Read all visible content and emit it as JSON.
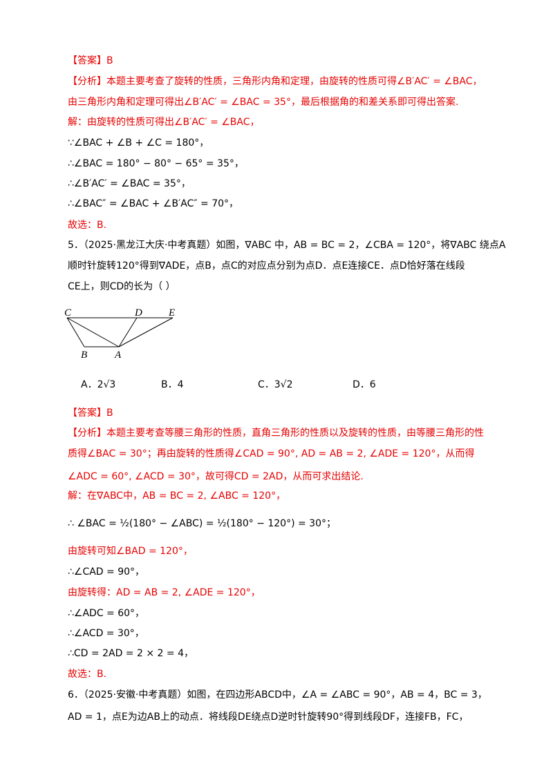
{
  "lines": [
    {
      "text": "【答案】B",
      "color": "#e60000"
    },
    {
      "text": "【分析】本题主要考查了旋转的性质，三角形内角和定理，由旋转的性质可得∠B′AC′ = ∠BAC，",
      "color": "#e60000"
    },
    {
      "text": "由三角形内角和定理可得出∠B′AC′ = ∠BAC = 35°，最后根据角的和差关系即可得出答案.",
      "color": "#e60000"
    },
    {
      "text": "解：由旋转的性质可得出∠B′AC′ = ∠BAC，",
      "color": "#e60000"
    },
    {
      "text": "∵∠BAC + ∠B + ∠C = 180°，",
      "color": "#000000"
    },
    {
      "text": "∴∠BAC = 180° − 80° − 65° = 35°，",
      "color": "#000000"
    },
    {
      "text": "∴∠B′AC′ = ∠BAC = 35°，",
      "color": "#000000"
    },
    {
      "text": "∴∠BAC″ = ∠BAC + ∠B′AC″ = 70°，",
      "color": "#000000"
    },
    {
      "text": "故选：B.",
      "color": "#e60000"
    },
    {
      "text": "5．（2025·黑龙江大庆·中考真题）如图，∇ABC 中，AB = BC = 2，∠CBA = 120°，将∇ABC 绕点A",
      "color": "#000000"
    },
    {
      "text": "顺时针旋转120°得到∇ADE，点B，点C的对应点分别为点D．点E连接CE．点D恰好落在线段",
      "color": "#000000"
    },
    {
      "text": "CE上，则CD的长为（ ）",
      "color": "#000000"
    }
  ],
  "figure": {
    "labels": [
      "C",
      "D",
      "E",
      "B",
      "A"
    ]
  },
  "options": [
    "A．2√3",
    "B．4",
    "C．3√2",
    "D．6"
  ],
  "lines2": [
    {
      "text": "【答案】B",
      "color": "#e60000"
    },
    {
      "text": "【分析】本题主要考查等腰三角形的性质，直角三角形的性质以及旋转的性质，由等腰三角形的性",
      "color": "#e60000"
    },
    {
      "text": "质得∠BAC = 30°；再由旋转的性质得∠CAD = 90°, AD = AB = 2, ∠ADE = 120°，从而得",
      "color": "#e60000"
    },
    {
      "text": "∠ADC = 60°, ∠ACD = 30°，故可得CD = 2AD，从而可求出结论.",
      "color": "#e60000"
    },
    {
      "text": "解：在∇ABC中，AB = BC = 2, ∠ABC = 120°，",
      "color": "#e60000"
    },
    {
      "text": "∴ ∠BAC = ½(180° − ∠ABC) = ½(180° − 120°) = 30°；",
      "color": "#000000"
    },
    {
      "text": "由旋转可知∠BAD = 120°，",
      "color": "#e60000"
    },
    {
      "text": "∴∠CAD = 90°，",
      "color": "#000000"
    },
    {
      "text": "由旋转得：AD = AB = 2, ∠ADE = 120°，",
      "color": "#e60000"
    },
    {
      "text": "∴∠ADC = 60°，",
      "color": "#000000"
    },
    {
      "text": "∴∠ACD = 30°，",
      "color": "#000000"
    },
    {
      "text": "∴CD = 2AD = 2 × 2 = 4，",
      "color": "#000000"
    },
    {
      "text": "故选：B.",
      "color": "#e60000"
    },
    {
      "text": "6．（2025·安徽·中考真题）如图，在四边形ABCD中，∠A = ∠ABC = 90°，AB = 4，BC = 3，",
      "color": "#000000"
    },
    {
      "text": "AD = 1，点E为边AB上的动点．将线段DE绕点D逆时针旋转90°得到线段DF，连接FB，FC，",
      "color": "#000000"
    }
  ]
}
